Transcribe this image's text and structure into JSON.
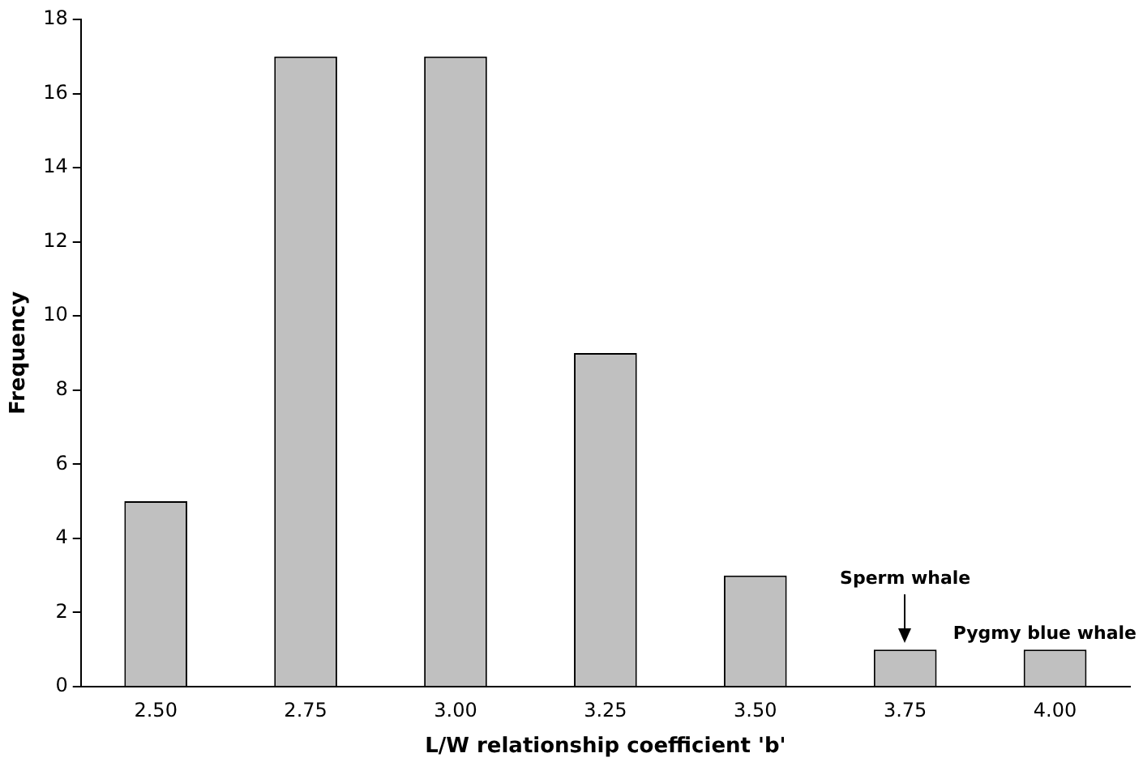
{
  "chart_data": {
    "type": "bar",
    "xlabel": "L/W relationship coefficient 'b'",
    "ylabel": "Frequency",
    "categories": [
      "2.50",
      "2.75",
      "3.00",
      "3.25",
      "3.50",
      "3.75",
      "4.00"
    ],
    "values": [
      5,
      17,
      17,
      9,
      3,
      1,
      1
    ],
    "color": "#c0c0c0",
    "ylim": [
      0,
      18
    ],
    "yticks": [
      0,
      2,
      4,
      6,
      8,
      10,
      12,
      14,
      16,
      18
    ],
    "grid": false,
    "legend": false,
    "annotations": [
      {
        "text": "Sperm whale",
        "x": "3.75",
        "y": 1
      },
      {
        "text": "Pygmy blue whale",
        "x": "4.00",
        "y": 1
      }
    ]
  }
}
